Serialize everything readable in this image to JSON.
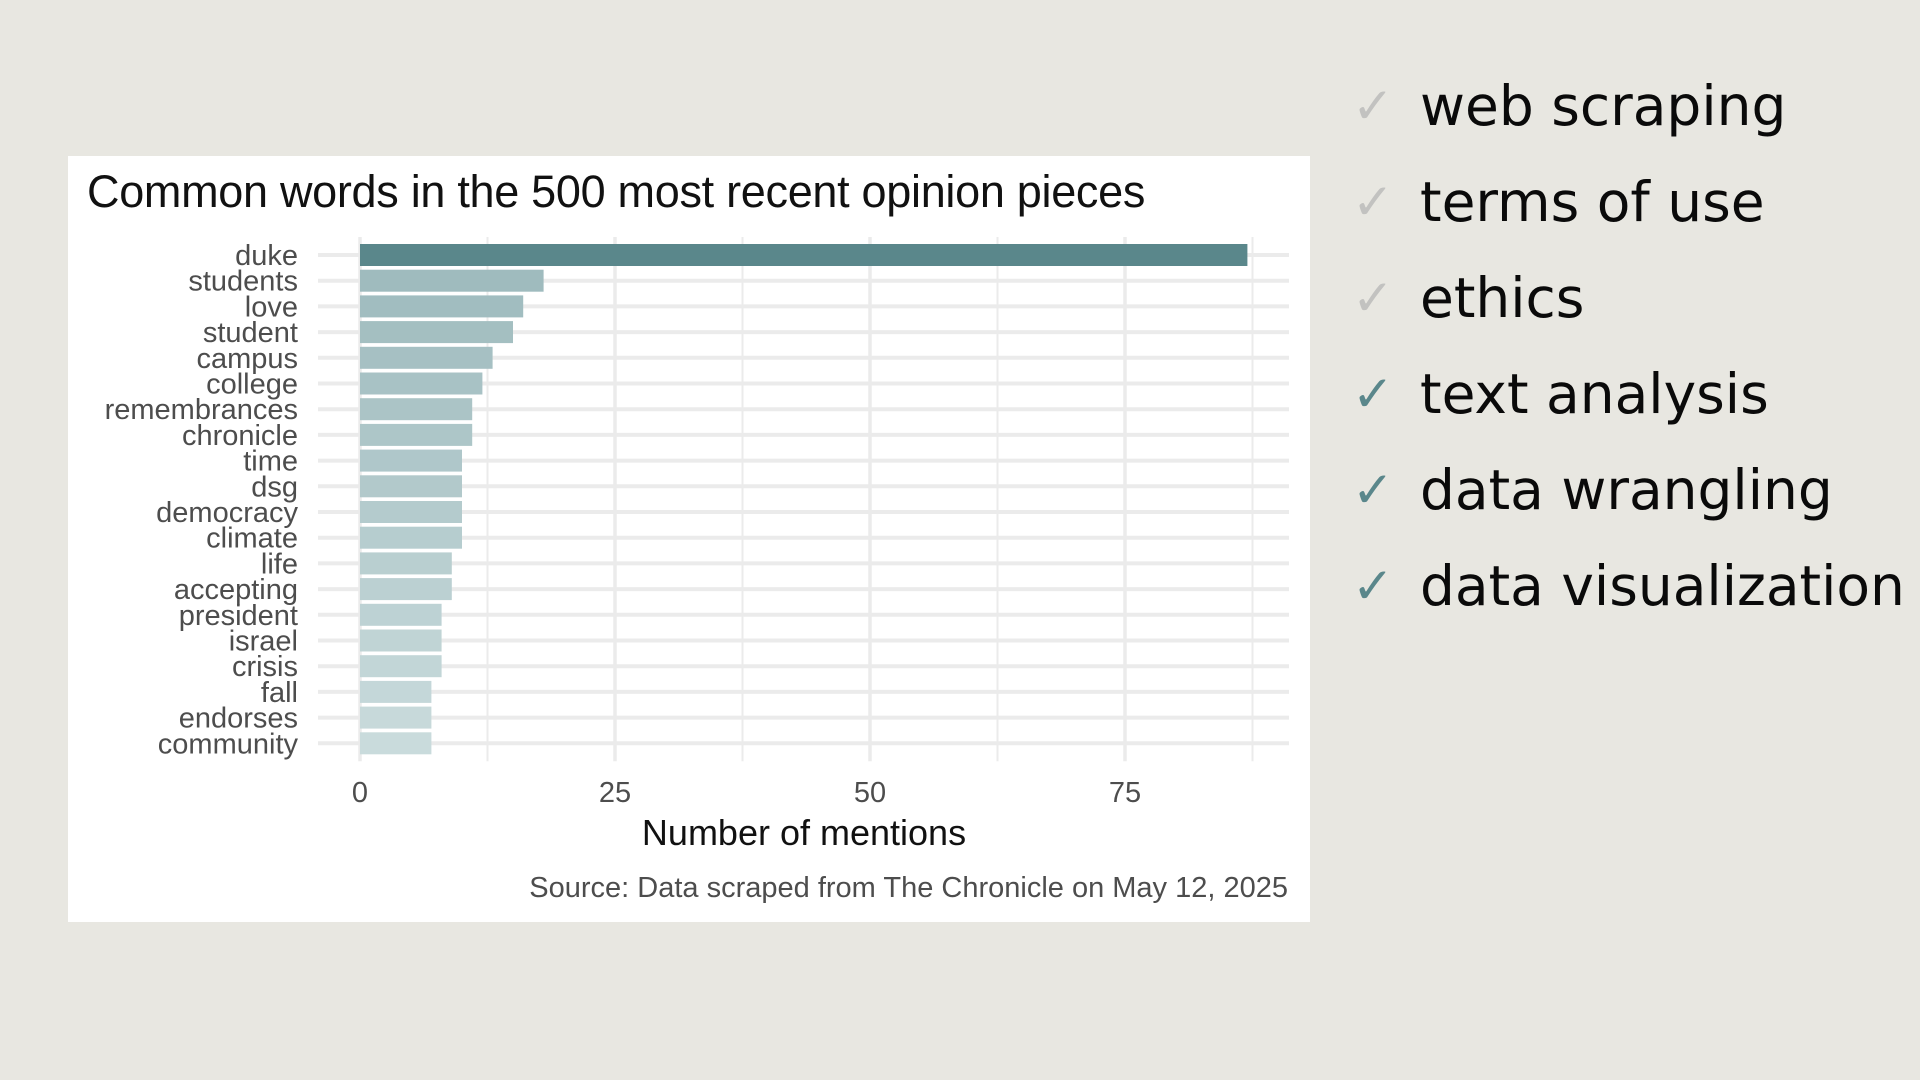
{
  "checklist": [
    {
      "label": "web scraping",
      "icon": "check-icon",
      "state": "done"
    },
    {
      "label": "terms of use",
      "icon": "check-icon",
      "state": "done"
    },
    {
      "label": "ethics",
      "icon": "check-icon",
      "state": "done"
    },
    {
      "label": "text analysis",
      "icon": "check-icon",
      "state": "current"
    },
    {
      "label": "data wrangling",
      "icon": "check-icon",
      "state": "current"
    },
    {
      "label": "data visualization",
      "icon": "check-icon",
      "state": "current"
    }
  ],
  "check_glyph": "✓",
  "colors": {
    "highlight_bar": "#5a878b",
    "bar_gradient_start": "#9fbbbe",
    "bar_gradient_end": "#c9dbdc",
    "check_done": "#c2c2c0",
    "check_current": "#5a878b",
    "background": "#e8e7e1"
  },
  "chart_data": {
    "type": "bar",
    "orientation": "horizontal",
    "title": "Common words in the 500 most recent opinion pieces",
    "xlabel": "Number of mentions",
    "ylabel": "",
    "caption": "Source: Data scraped from The Chronicle on May 12, 2025",
    "categories": [
      "duke",
      "students",
      "love",
      "student",
      "campus",
      "college",
      "remembrances",
      "chronicle",
      "time",
      "dsg",
      "democracy",
      "climate",
      "life",
      "accepting",
      "president",
      "israel",
      "crisis",
      "fall",
      "endorses",
      "community"
    ],
    "values": [
      87,
      18,
      16,
      15,
      13,
      12,
      11,
      11,
      10,
      10,
      10,
      10,
      9,
      9,
      8,
      8,
      8,
      7,
      7,
      7
    ],
    "xlim": [
      0,
      91
    ],
    "xticks": [
      0,
      25,
      50,
      75
    ],
    "xtick_labels": [
      "0",
      "25",
      "50",
      "75"
    ],
    "grid": true,
    "legend": "none"
  }
}
